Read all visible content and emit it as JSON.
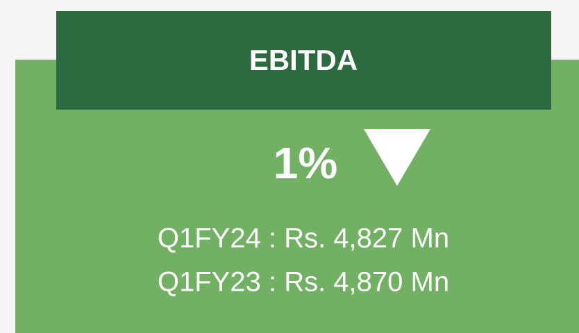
{
  "card": {
    "title": "EBITDA",
    "change": "1%",
    "lines": [
      "Q1FY24 : Rs. 4,827 Mn",
      "Q1FY23 : Rs. 4,870 Mn"
    ]
  }
}
